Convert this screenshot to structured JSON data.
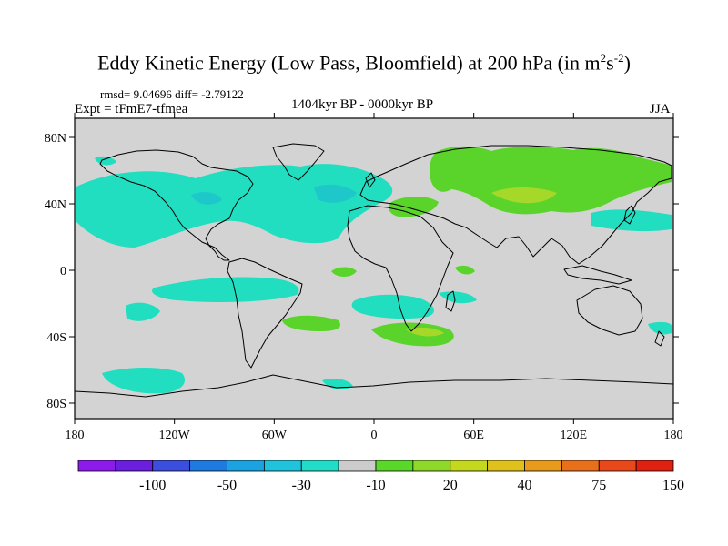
{
  "title": {
    "main": "Eddy Kinetic Energy (Low Pass, Bloomfield) at 200 hPa (in m",
    "sup1": "2",
    "mid": "s",
    "sup2": "-2",
    "end": ")"
  },
  "stats": "rmsd= 9.04696 diff= -2.79122",
  "experiment": "Expt = tFmE7-tfmea",
  "period": "1404kyr BP - 0000kyr BP",
  "season": "JJA",
  "map": {
    "y_ticks": [
      "80N",
      "40N",
      "0",
      "40S",
      "80S"
    ],
    "x_ticks": [
      "180",
      "120W",
      "60W",
      "0",
      "60E",
      "120E",
      "180"
    ]
  },
  "colorbar": {
    "colors": [
      "#8c1aeb",
      "#6a1fdf",
      "#3b4ee0",
      "#1f7ae0",
      "#1aa3e0",
      "#1fc4dc",
      "#20dcc8",
      "#cccccc",
      "#5ad82a",
      "#8ed82a",
      "#c4d81e",
      "#e0c01a",
      "#e89a1a",
      "#e8701a",
      "#e8481a",
      "#e02010"
    ],
    "labels": [
      "-100",
      "-50",
      "-30",
      "-10",
      "20",
      "40",
      "75",
      "150"
    ]
  },
  "colors": {
    "ocean": "#d3d3d3",
    "teal": "#22dec0",
    "teal_dark": "#1ec7c9",
    "green": "#5ad42a",
    "lime": "#a6d82a"
  }
}
